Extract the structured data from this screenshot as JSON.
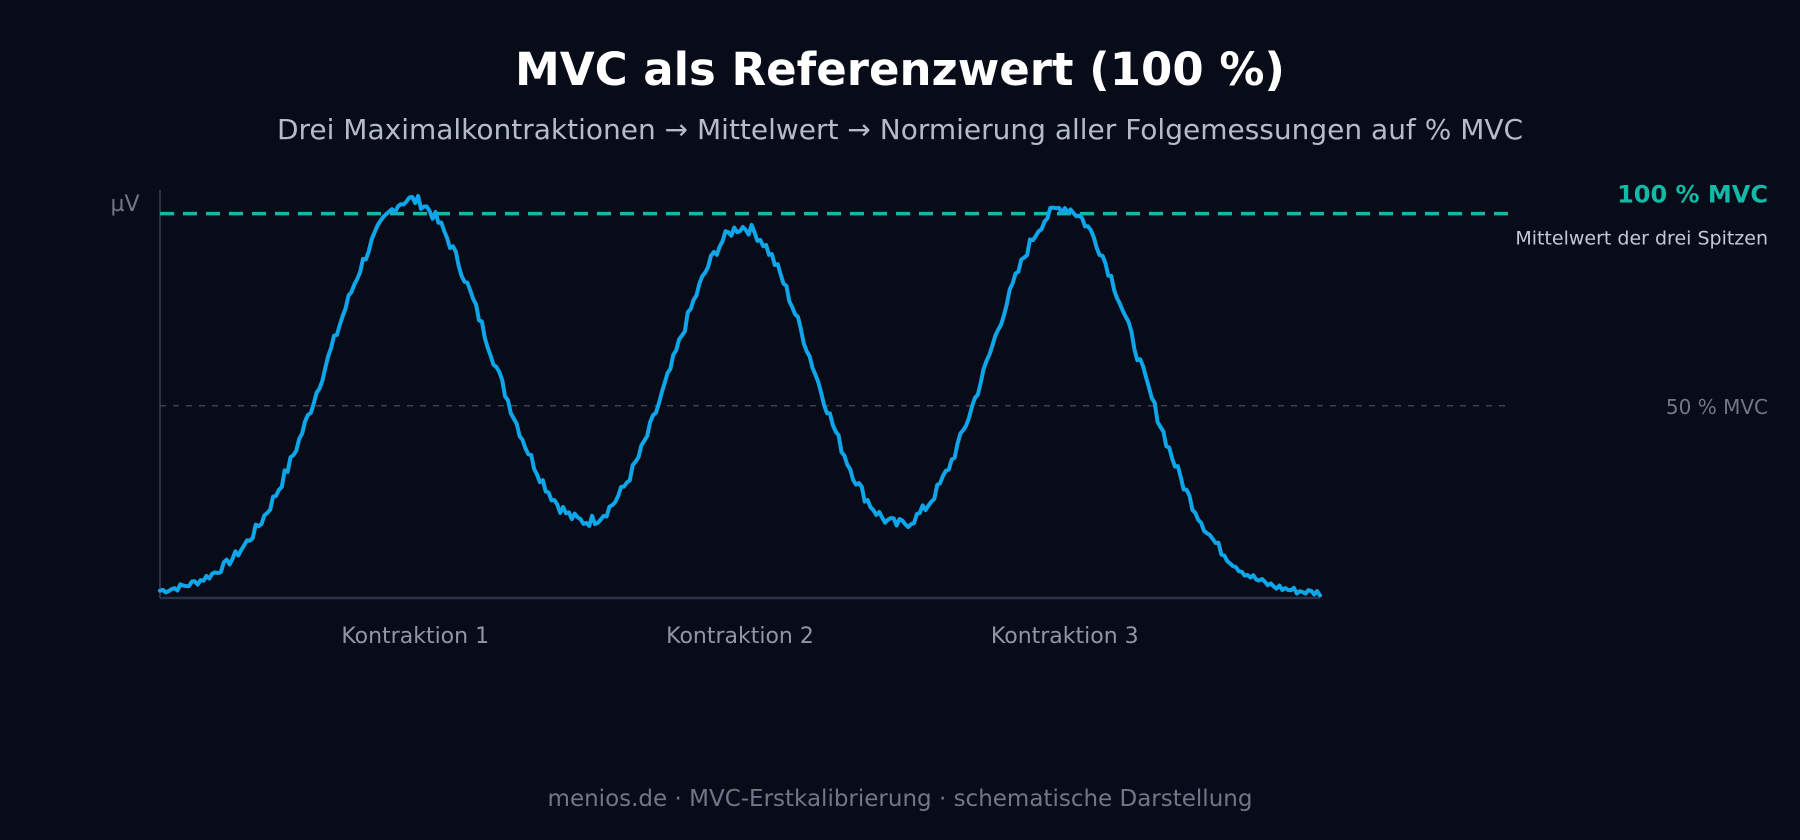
{
  "title": "MVC als Referenzwert (100 %)",
  "subtitle": "Drei Maximalkontraktionen → Mittelwert → Normierung aller Folgemessungen auf % MVC",
  "footer": "menios.de · MVC-Erstkalibrierung · schematische Darstellung",
  "colors": {
    "background": "#080c18",
    "signal": "#0ea5e9",
    "mvc_line": "#14b8a6",
    "axis": "#2c3347",
    "muted": "#6f7789"
  },
  "chart_data": {
    "type": "line",
    "ylabel": "µV",
    "ylim": [
      0,
      100
    ],
    "x_range": [
      0,
      100
    ],
    "grid": false,
    "categories": [
      "Kontraktion 1",
      "Kontraktion 2",
      "Kontraktion 3"
    ],
    "category_positions": [
      22,
      50,
      78
    ],
    "reference_lines": [
      {
        "label": "100 % MVC",
        "sublabel": "Mittelwert der drei Spitzen",
        "value": 97,
        "style": "dashed"
      },
      {
        "label": "50 % MVC",
        "sublabel": "",
        "value": 48.5,
        "style": "dotted"
      }
    ],
    "series": [
      {
        "name": "",
        "peaks": [
          {
            "center": 21.6,
            "height": 99.5,
            "width": 7.0
          },
          {
            "center": 50.2,
            "height": 92.5,
            "width": 6.2
          },
          {
            "center": 77.9,
            "height": 97.5,
            "width": 6.5
          }
        ],
        "baseline": 1.0
      }
    ]
  }
}
